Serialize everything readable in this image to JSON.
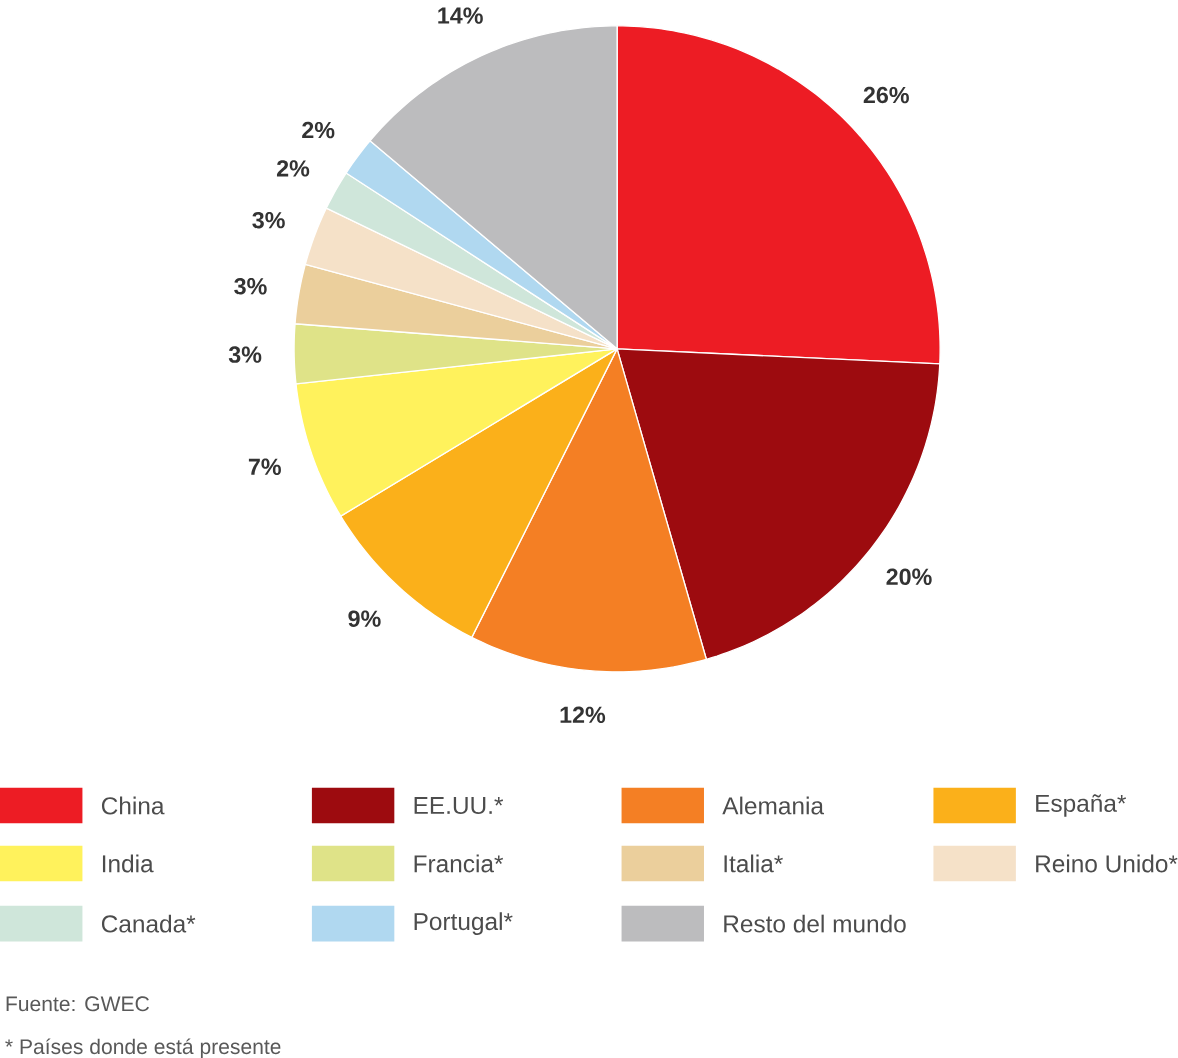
{
  "chart_data": {
    "type": "pie",
    "categories": [
      "China",
      "EE.UU.*",
      "Alemania",
      "España*",
      "India",
      "Francia*",
      "Italia*",
      "Reino Unido*",
      "Canada*",
      "Portugal*",
      "Resto del mundo"
    ],
    "values": [
      26,
      20,
      12,
      9,
      7,
      3,
      3,
      3,
      2,
      2,
      14
    ],
    "value_labels": [
      "26%",
      "20%",
      "12%",
      "9%",
      "7%",
      "3%",
      "3%",
      "3%",
      "2%",
      "2%",
      "14%"
    ],
    "colors": [
      "#ed1c24",
      "#9d0b0f",
      "#f47f24",
      "#fbb01a",
      "#fff25c",
      "#dfe388",
      "#ebcf9c",
      "#f5e1c8",
      "#cfe6da",
      "#b0d8f0",
      "#bcbcbe"
    ],
    "legend": "bottom",
    "annotations": [
      "Fuente: GWEC",
      "* Países donde está presente"
    ]
  }
}
